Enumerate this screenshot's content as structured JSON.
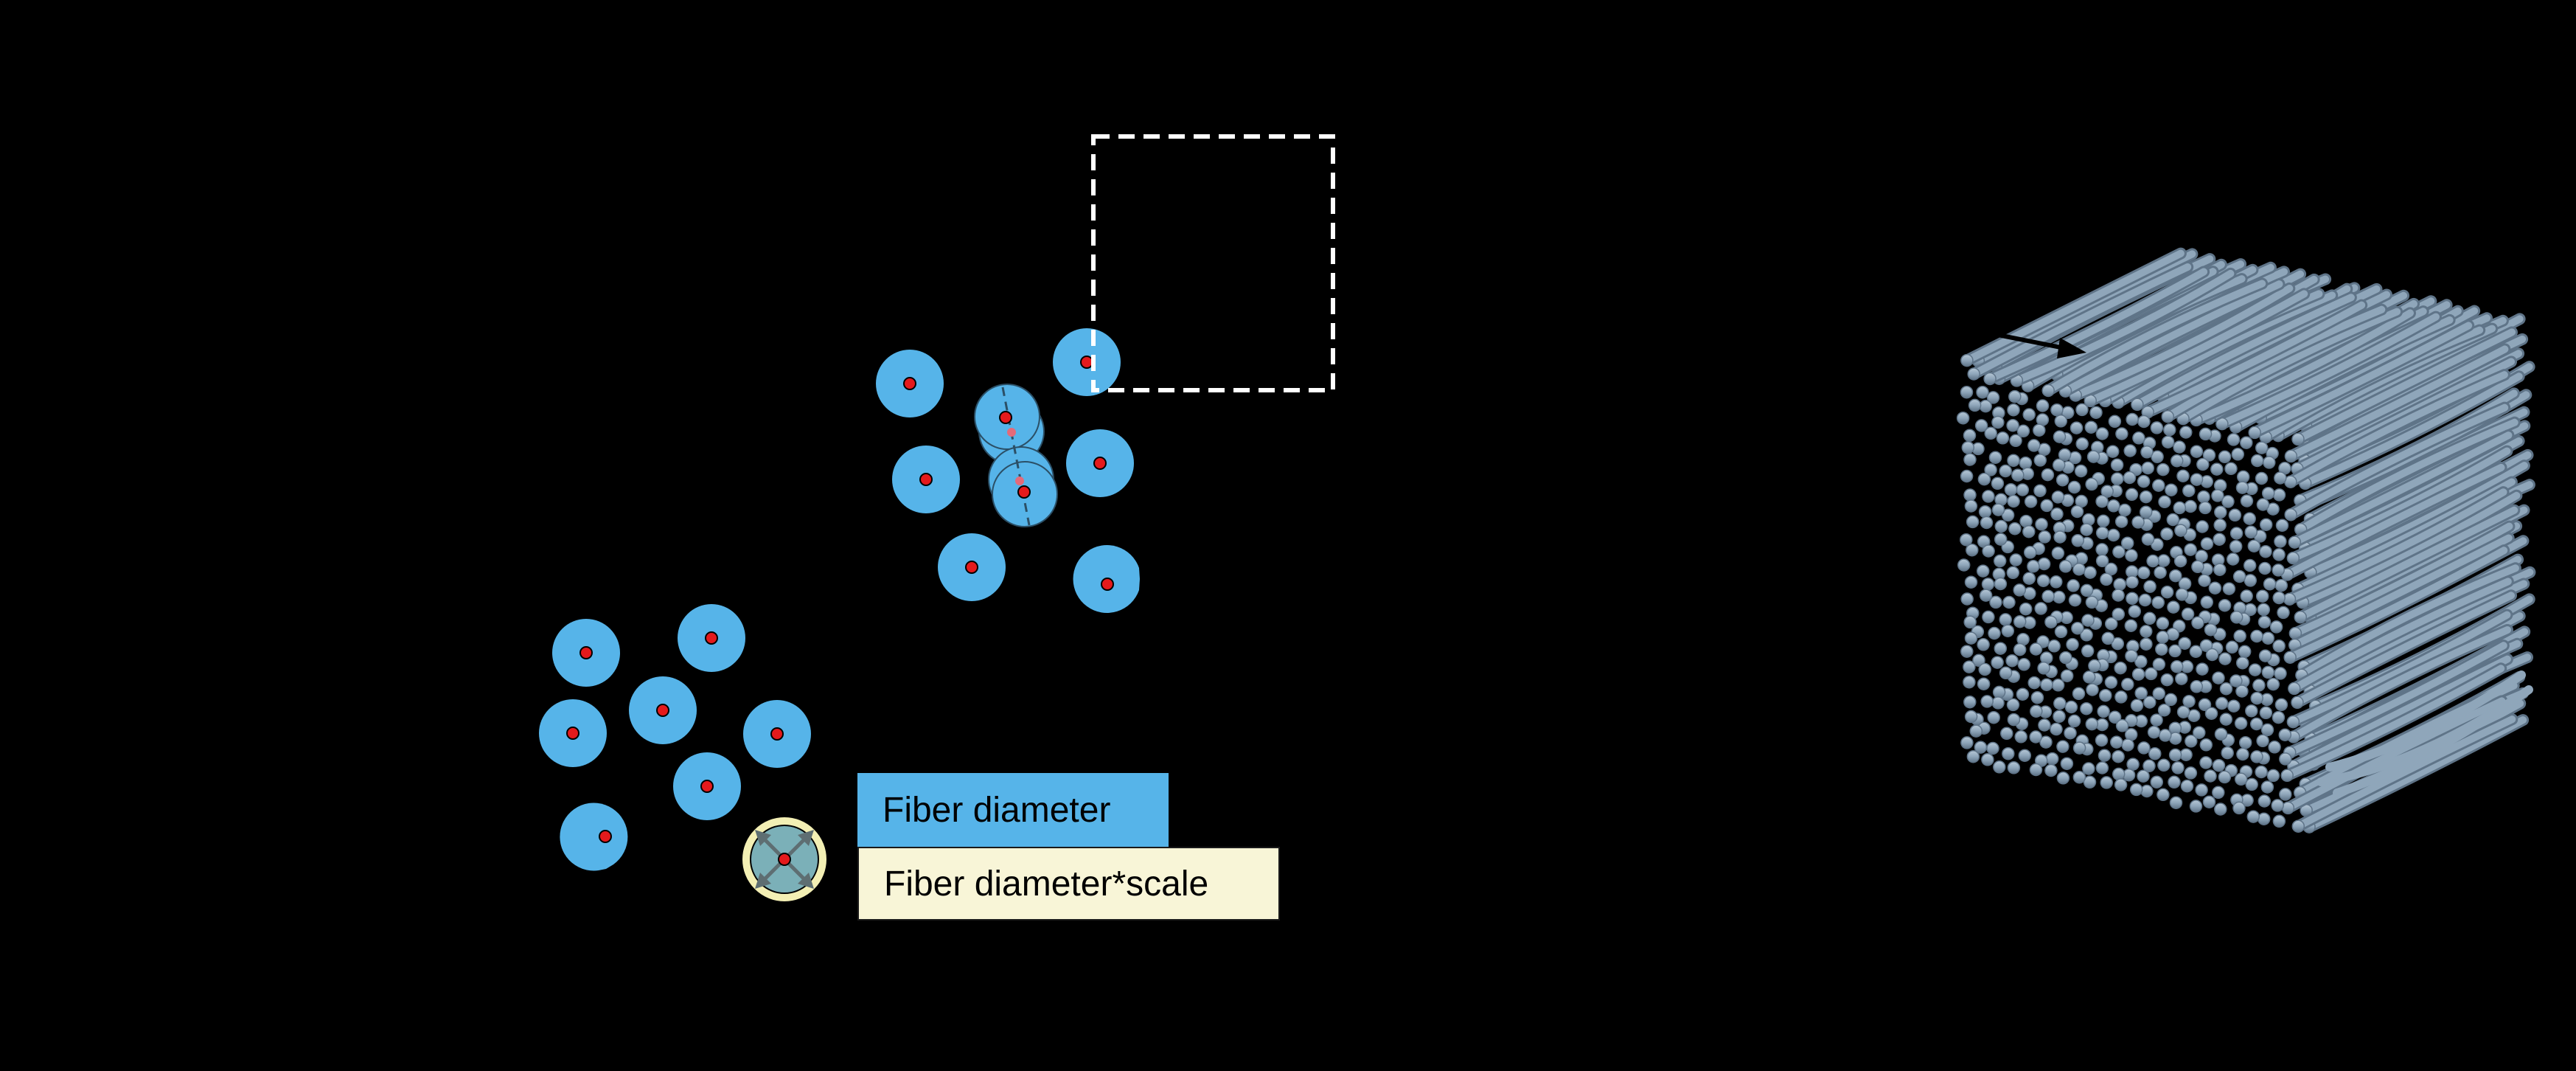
{
  "legend": {
    "fiber_diameter": {
      "label": "Fiber diameter",
      "color": "#56B4E9"
    },
    "fiber_diameter_scale": {
      "label": "Fiber diameter*scale",
      "color": "#F8F5D7"
    }
  },
  "colors": {
    "background": "#000000",
    "fiber_fill": "#56B4E9",
    "fiber_center": "#E41A1C",
    "scaled_ring": "#F3EFB4",
    "scaled_core": "#7BB0B8",
    "arrow": "#5E6E72",
    "dashed_box": "#FFFFFF",
    "fiber_3d": "#8FA6BA",
    "fiber_3d_shadow": "#5F7488"
  },
  "icons": [
    "fiber-cross-section-icon",
    "expansion-arrows-icon",
    "fiber-bundle-3d-illustration"
  ]
}
